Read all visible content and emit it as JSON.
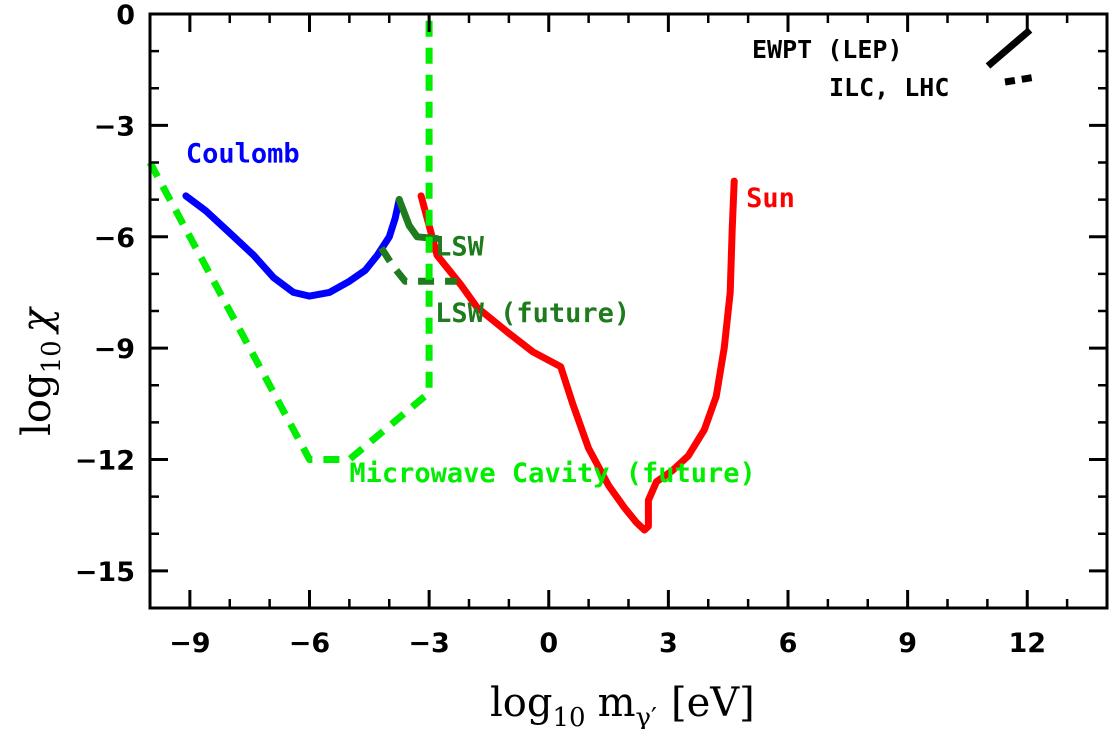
{
  "chart_data": {
    "type": "line",
    "xlabel": "log10 mγ′ [eV]",
    "xlabel_parts": {
      "log": "log",
      "base": "10",
      "m": "m",
      "sub": "γ′",
      "unit": "[eV]"
    },
    "ylabel": "log10 χ",
    "ylabel_parts": {
      "log": "log",
      "base": "10",
      "symbol": "χ"
    },
    "xlim": [
      -10,
      14
    ],
    "ylim": [
      -16,
      0
    ],
    "xticks": [
      -9,
      -6,
      -3,
      0,
      3,
      6,
      9,
      12
    ],
    "xtick_labels": [
      "−9",
      "−6",
      "−3",
      "0",
      "3",
      "6",
      "9",
      "12"
    ],
    "yticks": [
      0,
      -3,
      -6,
      -9,
      -12,
      -15
    ],
    "ytick_labels": [
      "0",
      "−3",
      "−6",
      "−9",
      "−12",
      "−15"
    ],
    "grid": false,
    "series": [
      {
        "name": "Coulomb",
        "color": "#0000ff",
        "dash": "solid",
        "label_at": [
          -9.1,
          -4.0
        ],
        "points": [
          [
            -9.1,
            -4.9
          ],
          [
            -8.6,
            -5.3
          ],
          [
            -8.0,
            -5.9
          ],
          [
            -7.4,
            -6.5
          ],
          [
            -6.9,
            -7.1
          ],
          [
            -6.4,
            -7.5
          ],
          [
            -6.0,
            -7.6
          ],
          [
            -5.5,
            -7.5
          ],
          [
            -5.0,
            -7.2
          ],
          [
            -4.6,
            -6.9
          ],
          [
            -4.3,
            -6.5
          ],
          [
            -4.0,
            -6.0
          ],
          [
            -3.85,
            -5.5
          ],
          [
            -3.75,
            -5.0
          ]
        ]
      },
      {
        "name": "Sun",
        "color": "#ff0000",
        "dash": "solid",
        "label_at": [
          4.95,
          -5.2
        ],
        "points": [
          [
            -3.2,
            -4.9
          ],
          [
            -2.8,
            -6.5
          ],
          [
            -2.2,
            -7.3
          ],
          [
            -1.8,
            -7.9
          ],
          [
            -1.0,
            -8.6
          ],
          [
            -0.4,
            -9.1
          ],
          [
            0.3,
            -9.5
          ],
          [
            0.6,
            -10.5
          ],
          [
            1.0,
            -11.7
          ],
          [
            1.5,
            -12.7
          ],
          [
            1.9,
            -13.3
          ],
          [
            2.2,
            -13.7
          ],
          [
            2.4,
            -13.9
          ],
          [
            2.5,
            -13.8
          ],
          [
            2.5,
            -13.1
          ],
          [
            2.7,
            -12.6
          ],
          [
            3.1,
            -12.3
          ],
          [
            3.5,
            -11.9
          ],
          [
            3.9,
            -11.2
          ],
          [
            4.2,
            -10.3
          ],
          [
            4.4,
            -9.0
          ],
          [
            4.55,
            -7.5
          ],
          [
            4.6,
            -5.8
          ],
          [
            4.65,
            -4.5
          ]
        ]
      },
      {
        "name": "LSW",
        "color": "#1e7b1e",
        "dash": "solid",
        "label_at": [
          -2.85,
          -6.5
        ],
        "points": [
          [
            -3.75,
            -5.0
          ],
          [
            -3.5,
            -5.7
          ],
          [
            -3.3,
            -6.0
          ],
          [
            -2.8,
            -6.05
          ]
        ]
      },
      {
        "name": "LSW (future)",
        "color": "#1e7b1e",
        "dash": "dashed",
        "label_at": [
          -2.85,
          -8.3
        ],
        "points": [
          [
            -4.2,
            -6.3
          ],
          [
            -3.9,
            -6.8
          ],
          [
            -3.6,
            -7.2
          ],
          [
            -3.0,
            -7.2
          ],
          [
            -2.3,
            -7.2
          ]
        ]
      },
      {
        "name": "Microwave Cavity (future)",
        "color": "#00ee00",
        "dash": "dashed",
        "label_at": [
          -5.0,
          -12.6
        ],
        "points": [
          [
            -10.0,
            -4.0
          ],
          [
            -6.0,
            -12.0
          ],
          [
            -5.0,
            -12.0
          ],
          [
            -3.0,
            -10.2
          ],
          [
            -3.0,
            0.0
          ]
        ]
      }
    ],
    "legend": [
      {
        "label": "EWPT (LEP)",
        "dash": "solid",
        "color": "#000000"
      },
      {
        "label": "ILC, LHC",
        "dash": "dashed",
        "color": "#000000"
      }
    ]
  }
}
